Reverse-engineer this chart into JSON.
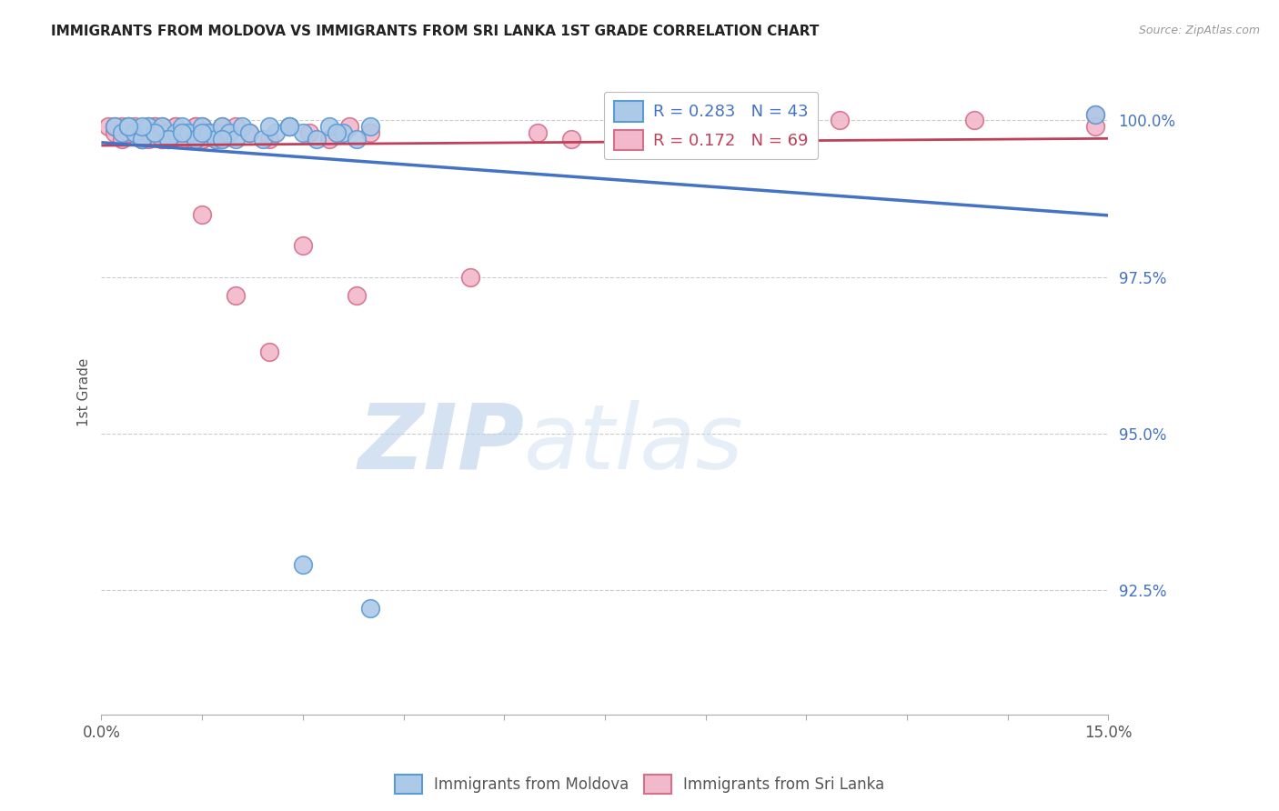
{
  "title": "IMMIGRANTS FROM MOLDOVA VS IMMIGRANTS FROM SRI LANKA 1ST GRADE CORRELATION CHART",
  "source": "Source: ZipAtlas.com",
  "ylabel": "1st Grade",
  "ylabel_right_ticks": [
    "100.0%",
    "97.5%",
    "95.0%",
    "92.5%"
  ],
  "ylabel_right_values": [
    1.0,
    0.975,
    0.95,
    0.925
  ],
  "xmin": 0.0,
  "xmax": 0.15,
  "ymin": 0.905,
  "ymax": 1.008,
  "moldova_color": "#adc9e8",
  "moldova_edge": "#5b9bd5",
  "srilanka_color": "#f2b8cb",
  "srilanka_edge": "#d4708a",
  "trend_moldova": "#4472c4",
  "trend_srilanka": "#c0405a",
  "legend_R_moldova": "R = 0.283",
  "legend_N_moldova": "N = 43",
  "legend_R_srilanka": "R = 0.172",
  "legend_N_srilanka": "N = 69",
  "watermark_zip": "ZIP",
  "watermark_atlas": "atlas",
  "legend_label_moldova": "Immigrants from Moldova",
  "legend_label_srilanka": "Immigrants from Sri Lanka",
  "moldova_x": [
    0.002,
    0.003,
    0.004,
    0.005,
    0.006,
    0.007,
    0.008,
    0.009,
    0.01,
    0.011,
    0.012,
    0.013,
    0.014,
    0.015,
    0.016,
    0.017,
    0.018,
    0.019,
    0.02,
    0.021,
    0.022,
    0.024,
    0.026,
    0.028,
    0.03,
    0.032,
    0.034,
    0.036,
    0.038,
    0.04,
    0.025,
    0.015,
    0.01,
    0.008,
    0.006,
    0.004,
    0.012,
    0.018,
    0.035,
    0.028,
    0.148,
    0.03,
    0.04
  ],
  "moldova_y": [
    0.999,
    0.998,
    0.999,
    0.998,
    0.997,
    0.999,
    0.998,
    0.999,
    0.997,
    0.998,
    0.999,
    0.998,
    0.997,
    0.999,
    0.998,
    0.997,
    0.999,
    0.998,
    0.997,
    0.999,
    0.998,
    0.997,
    0.998,
    0.999,
    0.998,
    0.997,
    0.999,
    0.998,
    0.997,
    0.999,
    0.999,
    0.998,
    0.997,
    0.998,
    0.999,
    0.999,
    0.998,
    0.997,
    0.998,
    0.999,
    1.001,
    0.929,
    0.922
  ],
  "srilanka_x": [
    0.001,
    0.002,
    0.003,
    0.004,
    0.005,
    0.006,
    0.007,
    0.008,
    0.009,
    0.01,
    0.011,
    0.012,
    0.013,
    0.014,
    0.015,
    0.016,
    0.017,
    0.018,
    0.003,
    0.005,
    0.007,
    0.009,
    0.011,
    0.013,
    0.015,
    0.017,
    0.002,
    0.004,
    0.006,
    0.008,
    0.01,
    0.012,
    0.014,
    0.016,
    0.018,
    0.02,
    0.022,
    0.025,
    0.028,
    0.031,
    0.034,
    0.037,
    0.04,
    0.015,
    0.02,
    0.025,
    0.004,
    0.006,
    0.008,
    0.01,
    0.012,
    0.005,
    0.007,
    0.009,
    0.011,
    0.013,
    0.015,
    0.03,
    0.038,
    0.055,
    0.065,
    0.07,
    0.08,
    0.09,
    0.1,
    0.11,
    0.13,
    0.148,
    0.148
  ],
  "srilanka_y": [
    0.999,
    0.998,
    0.997,
    0.999,
    0.998,
    0.997,
    0.999,
    0.998,
    0.997,
    0.998,
    0.999,
    0.997,
    0.998,
    0.999,
    0.997,
    0.998,
    0.997,
    0.999,
    0.999,
    0.998,
    0.997,
    0.999,
    0.998,
    0.997,
    0.999,
    0.998,
    0.999,
    0.998,
    0.997,
    0.999,
    0.998,
    0.997,
    0.999,
    0.998,
    0.997,
    0.999,
    0.998,
    0.997,
    0.999,
    0.998,
    0.997,
    0.999,
    0.998,
    0.985,
    0.972,
    0.963,
    0.998,
    0.997,
    0.999,
    0.998,
    0.997,
    0.999,
    0.998,
    0.997,
    0.999,
    0.998,
    0.997,
    0.98,
    0.972,
    0.975,
    0.998,
    0.997,
    1.001,
    1.001,
    1.0,
    1.0,
    1.0,
    1.001,
    0.999
  ]
}
